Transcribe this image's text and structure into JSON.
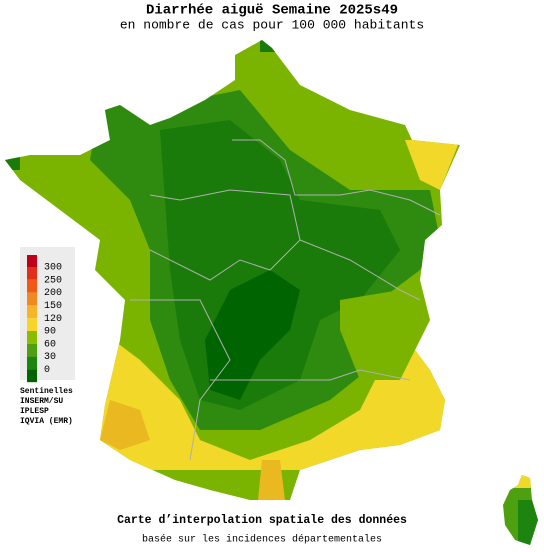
{
  "header": {
    "title": "Diarrhée aiguë Semaine 2025s49",
    "subtitle": "en nombre de cas pour 100 000 habitants"
  },
  "legend": {
    "items": [
      {
        "label": "300",
        "color": "#e0301a"
      },
      {
        "label": "250",
        "color": "#f05a14"
      },
      {
        "label": "200",
        "color": "#f08a20"
      },
      {
        "label": "150",
        "color": "#f8b428"
      },
      {
        "label": "120",
        "color": "#f8d428"
      },
      {
        "label": "90",
        "color": "#8cbc00"
      },
      {
        "label": "60",
        "color": "#4ea010"
      },
      {
        "label": "30",
        "color": "#1e8410"
      },
      {
        "label": "0",
        "color": "#006400"
      }
    ]
  },
  "sources": [
    "Sentinelles",
    "INSERM/SU",
    "IPLESP",
    "IQVIA (EMR)"
  ],
  "footer": {
    "line1": "Carte d’interpolation spatiale des données",
    "line2": "basée sur les incidences départementales"
  }
}
